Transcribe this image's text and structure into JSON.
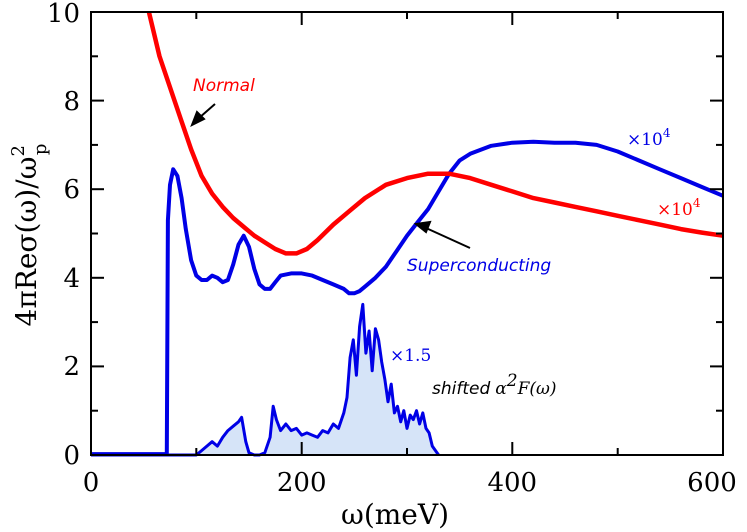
{
  "chart_data": {
    "type": "line",
    "title": "",
    "xlabel": "ω(meV)",
    "ylabel": "4πReσ(ω)/ω",
    "ylabel_sup": "2",
    "ylabel_sub": "p",
    "xlim": [
      0,
      600
    ],
    "ylim": [
      0,
      10
    ],
    "xticks": [
      0,
      200,
      400,
      600
    ],
    "yticks": [
      0,
      2,
      4,
      6,
      8,
      10
    ],
    "xtick_labels": [
      "0",
      "200",
      "400",
      "600"
    ],
    "ytick_labels": [
      "0",
      "2",
      "4",
      "6",
      "8",
      "10"
    ],
    "grid": false,
    "legend": "none",
    "series": [
      {
        "name": "Normal",
        "color": "#ff0000",
        "x": [
          55,
          65,
          75,
          85,
          95,
          105,
          115,
          125,
          135,
          145,
          155,
          165,
          175,
          185,
          195,
          205,
          215,
          230,
          245,
          260,
          280,
          300,
          320,
          340,
          360,
          380,
          400,
          420,
          440,
          460,
          480,
          500,
          520,
          540,
          560,
          580,
          600
        ],
        "y": [
          10.0,
          9.0,
          8.3,
          7.6,
          6.9,
          6.3,
          5.9,
          5.6,
          5.35,
          5.15,
          4.95,
          4.8,
          4.65,
          4.55,
          4.55,
          4.65,
          4.85,
          5.2,
          5.5,
          5.8,
          6.1,
          6.25,
          6.35,
          6.35,
          6.25,
          6.1,
          5.95,
          5.8,
          5.7,
          5.6,
          5.5,
          5.4,
          5.3,
          5.2,
          5.1,
          5.02,
          4.95
        ]
      },
      {
        "name": "Superconducting",
        "color": "#0000e6",
        "x": [
          0,
          40,
          72,
          73,
          75,
          78,
          82,
          86,
          90,
          95,
          100,
          105,
          110,
          115,
          120,
          125,
          130,
          135,
          140,
          145,
          150,
          155,
          160,
          165,
          170,
          175,
          180,
          190,
          200,
          210,
          220,
          230,
          240,
          245,
          250,
          255,
          260,
          270,
          280,
          290,
          300,
          310,
          320,
          330,
          340,
          350,
          360,
          380,
          400,
          420,
          440,
          460,
          480,
          500,
          520,
          540,
          560,
          580,
          600
        ],
        "y": [
          0.02,
          0.02,
          0.02,
          5.3,
          6.1,
          6.45,
          6.3,
          5.8,
          5.1,
          4.4,
          4.05,
          3.95,
          3.95,
          4.05,
          4.0,
          3.9,
          3.95,
          4.3,
          4.75,
          4.95,
          4.7,
          4.2,
          3.85,
          3.75,
          3.75,
          3.9,
          4.05,
          4.1,
          4.1,
          4.05,
          3.95,
          3.85,
          3.75,
          3.65,
          3.65,
          3.7,
          3.8,
          4.0,
          4.25,
          4.6,
          4.95,
          5.25,
          5.55,
          5.95,
          6.35,
          6.65,
          6.8,
          6.98,
          7.05,
          7.07,
          7.05,
          7.05,
          7.0,
          6.85,
          6.65,
          6.45,
          6.25,
          6.05,
          5.85
        ]
      },
      {
        "name": "shifted α²F(ω)",
        "color": "#0000e6",
        "fill": "#d6e4f8",
        "x": [
          0,
          100,
          105,
          110,
          115,
          120,
          125,
          130,
          135,
          140,
          143,
          147,
          150,
          155,
          160,
          165,
          170,
          173,
          176,
          180,
          185,
          190,
          195,
          200,
          205,
          210,
          215,
          220,
          225,
          230,
          235,
          240,
          243,
          246,
          249,
          252,
          255,
          258,
          261,
          264,
          267,
          270,
          273,
          276,
          279,
          282,
          285,
          288,
          291,
          294,
          297,
          300,
          303,
          306,
          309,
          312,
          315,
          318,
          321,
          324,
          330
        ],
        "y": [
          0.0,
          0.0,
          0.1,
          0.2,
          0.3,
          0.2,
          0.4,
          0.55,
          0.65,
          0.75,
          0.85,
          0.3,
          0.05,
          0.0,
          0.0,
          0.05,
          0.4,
          1.1,
          0.8,
          0.55,
          0.7,
          0.55,
          0.6,
          0.45,
          0.5,
          0.45,
          0.4,
          0.55,
          0.5,
          0.7,
          0.6,
          0.95,
          1.3,
          2.2,
          2.6,
          1.8,
          2.9,
          3.4,
          2.3,
          2.8,
          1.9,
          2.85,
          2.6,
          2.1,
          1.7,
          1.2,
          1.6,
          0.95,
          1.1,
          0.75,
          1.0,
          0.6,
          0.9,
          0.8,
          1.0,
          0.7,
          0.95,
          0.6,
          0.5,
          0.2,
          0.0
        ]
      }
    ],
    "annotations": {
      "normal_label": "Normal",
      "superconducting_label": "Superconducting",
      "alpha_prefix": "shifted",
      "alpha_text": "α",
      "alpha_sup": "2",
      "alpha_rest": "F(ω)",
      "sc_multiplier": "×10",
      "sc_multiplier_exp": "4",
      "normal_multiplier": "×10",
      "normal_multiplier_exp": "4",
      "alpha_multiplier": "×1.5"
    },
    "colors": {
      "normal": "#ff0000",
      "superconducting": "#0000e6",
      "alpha_fill": "#d6e4f8"
    }
  }
}
